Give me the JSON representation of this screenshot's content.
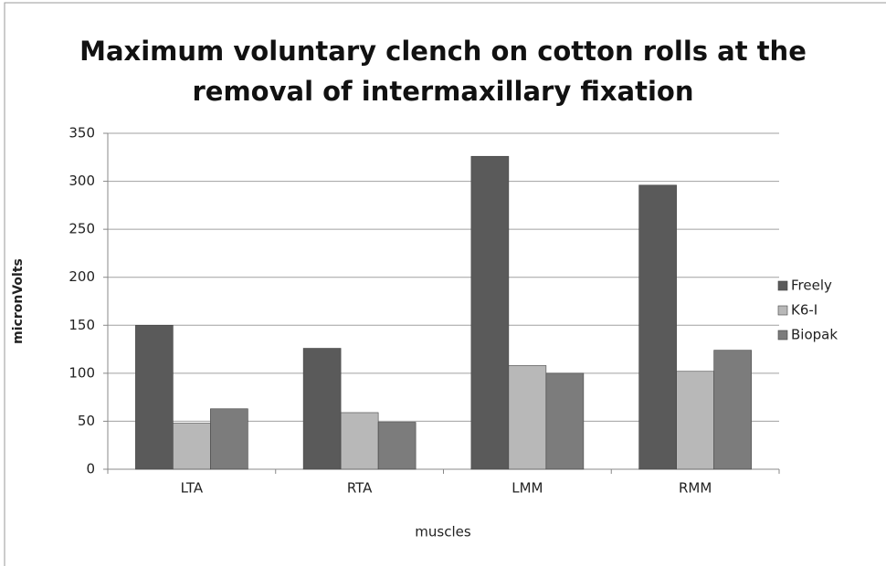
{
  "chart_data": {
    "type": "bar",
    "title": "Maximum voluntary clench on cotton rolls at the removal of intermaxillary fixation",
    "categories": [
      "LTA",
      "RTA",
      "LMM",
      "RMM"
    ],
    "series": [
      {
        "name": "Freely",
        "color": "#5a5a5a",
        "values": [
          150,
          126,
          326,
          296
        ]
      },
      {
        "name": "K6-I",
        "color": "#b8b8b8",
        "values": [
          48,
          59,
          108,
          102
        ]
      },
      {
        "name": "Biopak",
        "color": "#7c7c7c",
        "values": [
          63,
          49,
          100,
          124
        ]
      }
    ],
    "xlabel": "muscles",
    "ylabel": "micronVolts",
    "ylim": [
      0,
      350
    ],
    "yticks": [
      0,
      50,
      100,
      150,
      200,
      250,
      300,
      350
    ],
    "grid": true,
    "legend": "right"
  }
}
